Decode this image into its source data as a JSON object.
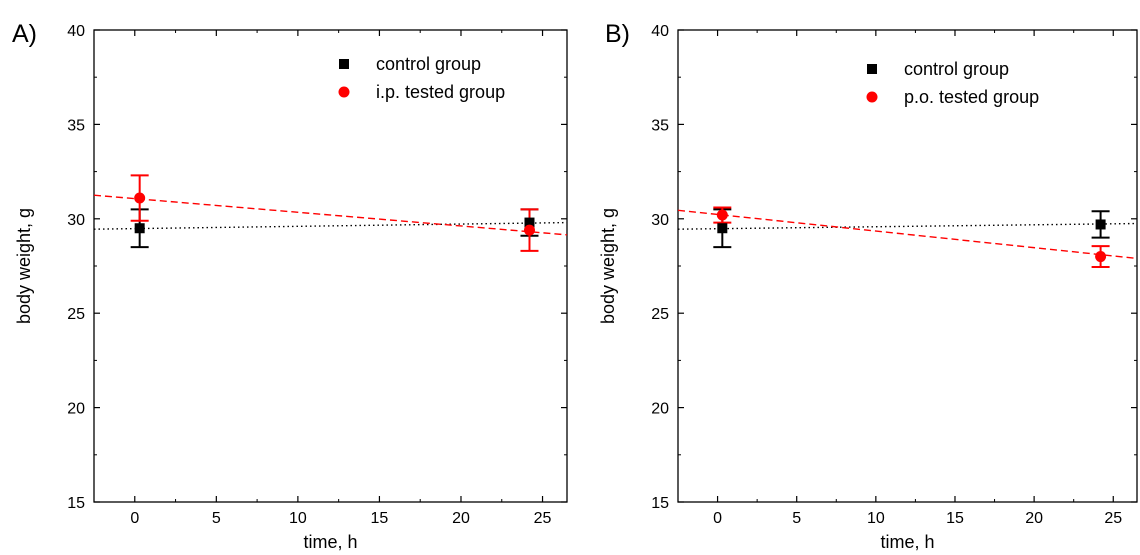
{
  "figure": {
    "panels": [
      "A)",
      "B)"
    ]
  },
  "colors": {
    "control": "#000000",
    "tested": "#ff0000",
    "axis": "#000000",
    "background": "#ffffff"
  },
  "chart_data": [
    {
      "type": "scatter",
      "panel_label": "A)",
      "title": "",
      "xlabel": "time, h",
      "ylabel": "body weight, g",
      "xlim": [
        -2.5,
        26.5
      ],
      "ylim": [
        15,
        40
      ],
      "xticks": [
        0,
        5,
        10,
        15,
        20,
        25
      ],
      "yticks": [
        15,
        20,
        25,
        30,
        35,
        40
      ],
      "grid": false,
      "legend_position": "top-right",
      "series": [
        {
          "name": "control group",
          "marker": "square",
          "color": "#000000",
          "x": [
            0.3,
            24.2
          ],
          "y": [
            29.5,
            29.8
          ],
          "error": [
            1.0,
            0.7
          ],
          "trend": {
            "style": "dotted",
            "x": [
              -2.5,
              26.5
            ],
            "y": [
              29.45,
              29.8
            ]
          }
        },
        {
          "name": "i.p. tested group",
          "marker": "circle",
          "color": "#ff0000",
          "x": [
            0.3,
            24.2
          ],
          "y": [
            31.1,
            29.4
          ],
          "error": [
            1.2,
            1.1
          ],
          "trend": {
            "style": "dashed",
            "x": [
              -2.5,
              26.5
            ],
            "y": [
              31.25,
              29.15
            ]
          }
        }
      ]
    },
    {
      "type": "scatter",
      "panel_label": "B)",
      "title": "",
      "xlabel": "time, h",
      "ylabel": "body weight, g",
      "xlim": [
        -2.5,
        26.5
      ],
      "ylim": [
        15,
        40
      ],
      "xticks": [
        0,
        5,
        10,
        15,
        20,
        25
      ],
      "yticks": [
        15,
        20,
        25,
        30,
        35,
        40
      ],
      "grid": false,
      "legend_position": "top-right",
      "series": [
        {
          "name": "control group",
          "marker": "square",
          "color": "#000000",
          "x": [
            0.3,
            24.2
          ],
          "y": [
            29.5,
            29.7
          ],
          "error": [
            1.0,
            0.7
          ],
          "trend": {
            "style": "dotted",
            "x": [
              -2.5,
              26.5
            ],
            "y": [
              29.45,
              29.75
            ]
          }
        },
        {
          "name": "p.o. tested group",
          "marker": "circle",
          "color": "#ff0000",
          "x": [
            0.3,
            24.2
          ],
          "y": [
            30.2,
            28.0
          ],
          "error": [
            0.4,
            0.55
          ],
          "trend": {
            "style": "dashed",
            "x": [
              -2.5,
              26.5
            ],
            "y": [
              30.45,
              27.9
            ]
          }
        }
      ]
    }
  ]
}
